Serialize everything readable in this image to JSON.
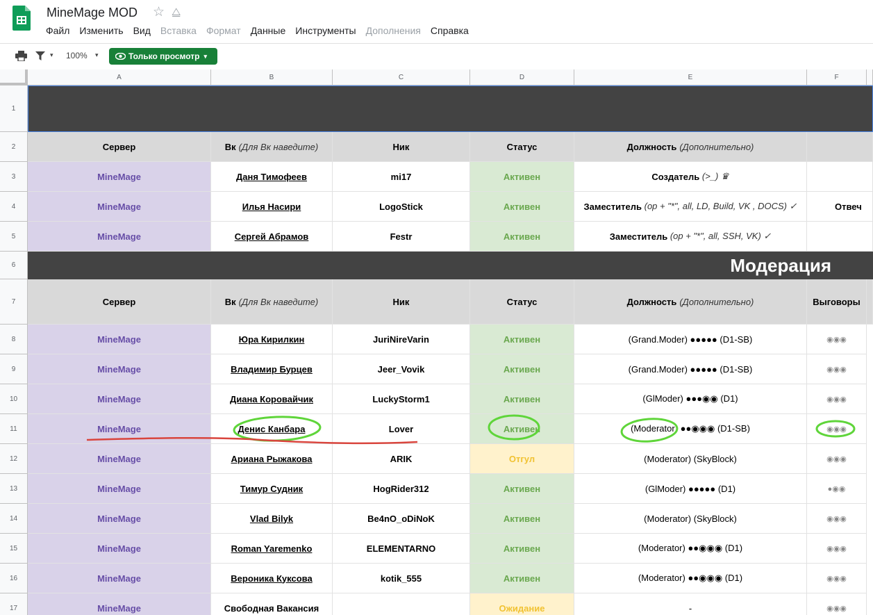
{
  "app": {
    "title": "MineMage MOD",
    "menu": [
      "Файл",
      "Изменить",
      "Вид",
      "Вставка",
      "Формат",
      "Данные",
      "Инструменты",
      "Дополнения",
      "Справка"
    ],
    "menu_disabled": [
      false,
      false,
      false,
      true,
      true,
      false,
      false,
      true,
      false
    ]
  },
  "toolbar": {
    "zoom": "100%",
    "view_only": "Только просмотр"
  },
  "columns": [
    "A",
    "B",
    "C",
    "D",
    "E",
    "F"
  ],
  "rows_numbers": [
    "1",
    "2",
    "3",
    "4",
    "5",
    "6",
    "7",
    "8",
    "9",
    "10",
    "11",
    "12",
    "13",
    "14",
    "15",
    "16",
    "17"
  ],
  "header_top": {
    "server": "Сервер",
    "vk": "Вк",
    "vk_note": "(Для Вк наведите)",
    "nick": "Ник",
    "status": "Статус",
    "position": "Должность",
    "position_note": "(Дополнительно)"
  },
  "admins": [
    {
      "server": "MineMage",
      "vk": "Даня Тимофеев",
      "nick": "mi17",
      "status": "Активен",
      "position": "Создатель",
      "position_note": "(>_) ♛",
      "extra": ""
    },
    {
      "server": "MineMage",
      "vk": "Илья Насири",
      "nick": "LogoStick",
      "status": "Активен",
      "position": "Заместитель",
      "position_note": "(op + \"*\", all, LD, Build, VK , DOCS) ✓",
      "extra": "Отвеч"
    },
    {
      "server": "MineMage",
      "vk": "Сергей Абрамов",
      "nick": "Festr",
      "status": "Активен",
      "position": "Заместитель",
      "position_note": "(op + \"*\", all, SSH, VK) ✓",
      "extra": ""
    }
  ],
  "section_title": "Модерация",
  "header_mod": {
    "server": "Сервер",
    "vk": "Вк",
    "vk_note": "(Для Вк наведите)",
    "nick": "Ник",
    "status": "Статус",
    "position": "Должность",
    "position_note": "(Дополнительно)",
    "warnings": "Выговоры"
  },
  "moderators": [
    {
      "server": "MineMage",
      "vk": "Юра Кирилкин",
      "nick": "JuriNireVarin",
      "status": "Активен",
      "status_kind": "active",
      "position": "(Grand.Moder) ●●●●● (D1-SB)",
      "warnings": "◉◉◉"
    },
    {
      "server": "MineMage",
      "vk": "Владимир Бурцев",
      "nick": "Jeer_Vovik",
      "status": "Активен",
      "status_kind": "active",
      "position": "(Grand.Moder) ●●●●● (D1-SB)",
      "warnings": "◉◉◉"
    },
    {
      "server": "MineMage",
      "vk": "Диана Коровайчик",
      "nick": "LuckyStorm1",
      "status": "Активен",
      "status_kind": "active",
      "position": "(GlModer) ●●●◉◉ (D1)",
      "warnings": "◉◉◉"
    },
    {
      "server": "MineMage",
      "vk": "Денис Канбара",
      "nick": "Lover",
      "status": "Активен",
      "status_kind": "active",
      "position": "(Moderator)  ●●◉◉◉ (D1-SB)",
      "warnings": "◉◉◉"
    },
    {
      "server": "MineMage",
      "vk": "Ариана Рыжакова",
      "nick": "ARIK",
      "status": "Отгул",
      "status_kind": "off",
      "position": "(Moderator) (SkyBlock)",
      "warnings": "◉◉◉"
    },
    {
      "server": "MineMage",
      "vk": "Тимур Судник",
      "nick": "HogRider312",
      "status": "Активен",
      "status_kind": "active",
      "position": "(GlModer) ●●●●● (D1)",
      "warnings": "●◉◉"
    },
    {
      "server": "MineMage",
      "vk": "Vlad Bilyk",
      "nick": "Be4nO_oDiNoK",
      "status": "Активен",
      "status_kind": "active",
      "position": "(Moderator) (SkyBlock)",
      "warnings": "◉◉◉"
    },
    {
      "server": "MineMage",
      "vk": "Roman Yaremenko",
      "nick": "ELEMENTARNO",
      "status": "Активен",
      "status_kind": "active",
      "position": "(Moderator)  ●●◉◉◉ (D1)",
      "warnings": "◉◉◉"
    },
    {
      "server": "MineMage",
      "vk": "Вероника Куксова",
      "nick": "kotik_555",
      "status": "Активен",
      "status_kind": "active",
      "position": "(Moderator)  ●●◉◉◉ (D1)",
      "warnings": "◉◉◉"
    },
    {
      "server": "MineMage",
      "vk": "Свободная Вакансия",
      "nick": "",
      "status": "Ожидание",
      "status_kind": "off",
      "position": "-",
      "warnings": "◉◉◉"
    }
  ],
  "colors": {
    "brand_green": "#188038",
    "annotation_green": "#5fd53a",
    "annotation_red": "#d9453d"
  }
}
